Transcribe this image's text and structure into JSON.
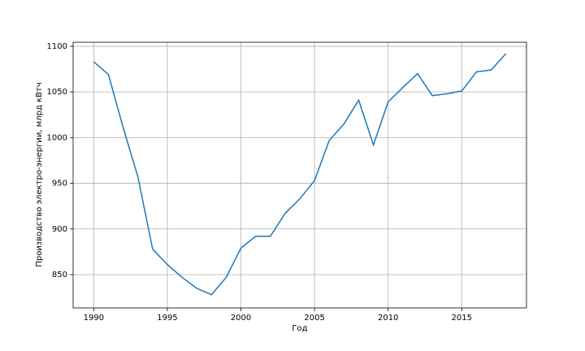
{
  "chart_data": {
    "type": "line",
    "x_label": "Год",
    "y_label": "Производство электро-энергии, млрд кВтч",
    "x": [
      1990,
      1991,
      1992,
      1993,
      1994,
      1995,
      1996,
      1997,
      1998,
      1999,
      2000,
      2001,
      2002,
      2003,
      2004,
      2005,
      2006,
      2007,
      2008,
      2009,
      2010,
      2011,
      2012,
      2013,
      2014,
      2015,
      2016,
      2017,
      2018
    ],
    "series": [
      {
        "color": "#1f77b4",
        "values": [
          1083,
          1069,
          1011,
          957,
          878,
          861,
          847,
          835,
          828,
          847,
          879,
          892,
          892,
          917,
          933,
          953,
          997,
          1015,
          1041,
          992,
          1039,
          1055,
          1070,
          1046,
          1048,
          1051,
          1072,
          1074,
          1092
        ]
      }
    ],
    "xlim": [
      1988.6,
      2019.4
    ],
    "xticks": [
      1990,
      1995,
      2000,
      2005,
      2010,
      2015
    ],
    "ylim": [
      813.5,
      1104.4
    ],
    "yticks": [
      850,
      900,
      950,
      1000,
      1050,
      1100
    ],
    "grid": true
  }
}
